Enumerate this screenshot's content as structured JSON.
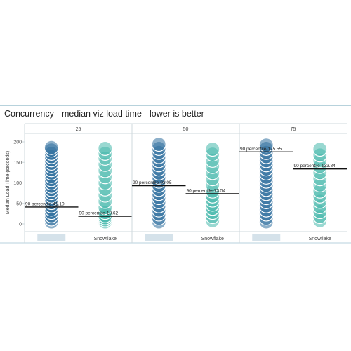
{
  "chart_data": {
    "type": "scatter",
    "title": "Concurrency - median viz load time - lower is better",
    "ylabel": "Median Load Time (seconds)",
    "ylim": [
      -10,
      215
    ],
    "yticks": [
      0,
      50,
      100,
      150,
      200
    ],
    "panels": [
      {
        "header": "25",
        "categories": [
          {
            "label": "",
            "color": "#2f6f9f",
            "percentile_label": "90 percentile-41.10",
            "percentile_value": 41.1,
            "values": [
              5,
              12,
              20,
              28,
              36,
              44,
              52,
              60,
              68,
              76,
              84,
              92,
              100,
              108,
              116,
              124,
              132,
              140,
              148,
              156,
              164,
              172,
              180,
              186
            ]
          },
          {
            "label": "Snowflake",
            "color": "#45b8ac",
            "percentile_label": "90 percentile-18.62",
            "percentile_value": 18.62,
            "values": [
              5,
              10,
              15,
              20,
              28,
              40,
              55,
              70,
              85,
              100,
              115,
              130,
              145,
              160,
              172,
              184
            ]
          }
        ]
      },
      {
        "header": "50",
        "categories": [
          {
            "label": "",
            "color": "#2f6f9f",
            "percentile_label": "90 percentile-93.05",
            "percentile_value": 93.05,
            "values": [
              5,
              14,
              24,
              34,
              44,
              54,
              64,
              74,
              84,
              94,
              104,
              114,
              124,
              134,
              144,
              154,
              164,
              174,
              184,
              194
            ]
          },
          {
            "label": "Snowflake",
            "color": "#45b8ac",
            "percentile_label": "90 percentile-73.54",
            "percentile_value": 73.54,
            "values": [
              8,
              18,
              28,
              38,
              48,
              58,
              68,
              80,
              95,
              110,
              125,
              140,
              155,
              170,
              182
            ]
          }
        ]
      },
      {
        "header": "75",
        "categories": [
          {
            "label": "",
            "color": "#2f6f9f",
            "percentile_label": "90 percentile-175.55",
            "percentile_value": 175.55,
            "values": [
              5,
              14,
              24,
              34,
              44,
              54,
              64,
              74,
              84,
              94,
              104,
              114,
              124,
              134,
              144,
              154,
              164,
              174,
              184,
              192
            ]
          },
          {
            "label": "Snowflake",
            "color": "#45b8ac",
            "percentile_label": "90 percentile-133.84",
            "percentile_value": 133.84,
            "values": [
              8,
              18,
              30,
              42,
              55,
              68,
              80,
              95,
              110,
              125,
              140,
              155,
              168,
              182
            ]
          }
        ]
      }
    ]
  }
}
